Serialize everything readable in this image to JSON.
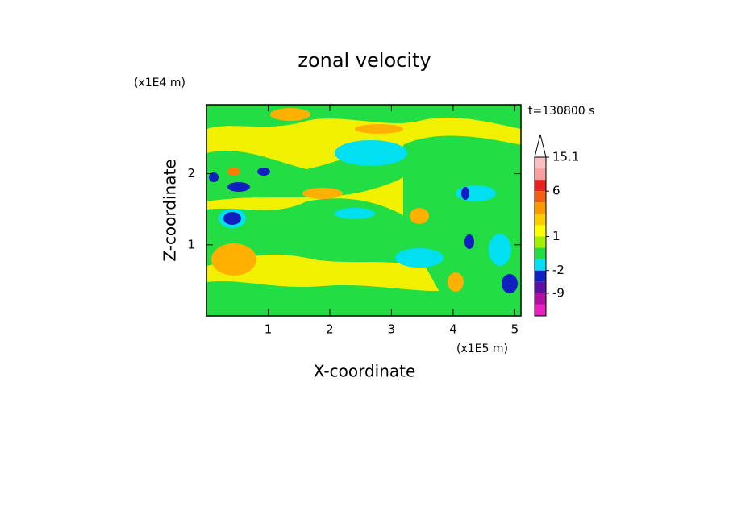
{
  "chart_data": {
    "type": "contour",
    "title": "zonal velocity",
    "x_label": "X-coordinate",
    "y_label": "Z-coordinate",
    "x_unit": "(x1E5 m)",
    "y_unit": "(x1E4 m)",
    "time_label": "t=130800 s",
    "xlim": [
      0,
      5.1
    ],
    "ylim": [
      0,
      2.97
    ],
    "xticks": [
      1,
      2,
      3,
      4,
      5
    ],
    "yticks": [
      1,
      2
    ],
    "colorbar": {
      "levels": [
        15.1,
        12,
        9,
        6,
        4,
        3,
        2,
        1,
        0,
        -1,
        -2,
        -5,
        -9,
        -12,
        -15
      ],
      "colors": [
        "#f8c0c0",
        "#f8a0a0",
        "#e82020",
        "#f06010",
        "#ff9900",
        "#ffcc00",
        "#ffff00",
        "#a0f000",
        "#22dd44",
        "#00e0f0",
        "#1020c0",
        "#6010a0",
        "#b010a0",
        "#e820c0"
      ],
      "ticks": [
        15.1,
        6,
        1,
        -2,
        -9
      ]
    }
  }
}
